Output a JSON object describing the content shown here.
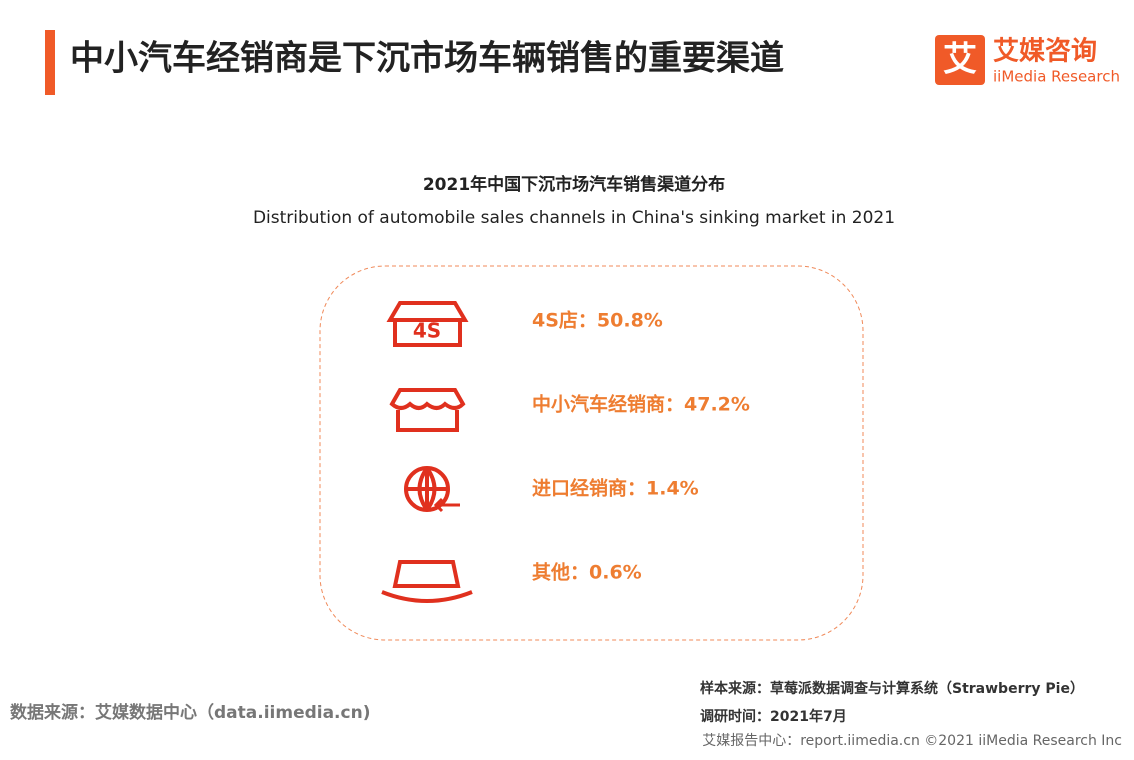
{
  "header": {
    "title": "中小汽车经销商是下沉市场车辆销售的重要渠道",
    "logo_mark": "艾",
    "logo_name": "艾媒咨询",
    "logo_sub": "iiMedia Research"
  },
  "figure": {
    "title": "2021年中国下沉市场汽车销售渠道分布",
    "subtitle": "Distribution of automobile sales channels in China's sinking market in 2021",
    "items": [
      {
        "icon_text": "4S",
        "text": "4S店：50.8%"
      },
      {
        "text": "中小汽车经销商：47.2%"
      },
      {
        "text": "进口经销商：1.4%"
      },
      {
        "text": "其他：0.6%"
      }
    ]
  },
  "footer": {
    "source": "数据来源：艾媒数据中心（data.iimedia.cn)",
    "sample": "样本来源：草莓派数据调查与计算系统（Strawberry Pie）",
    "date": "调研时间：2021年7月",
    "report": "艾媒报告中心：report.iimedia.cn ©2021 iiMedia Research Inc"
  }
}
